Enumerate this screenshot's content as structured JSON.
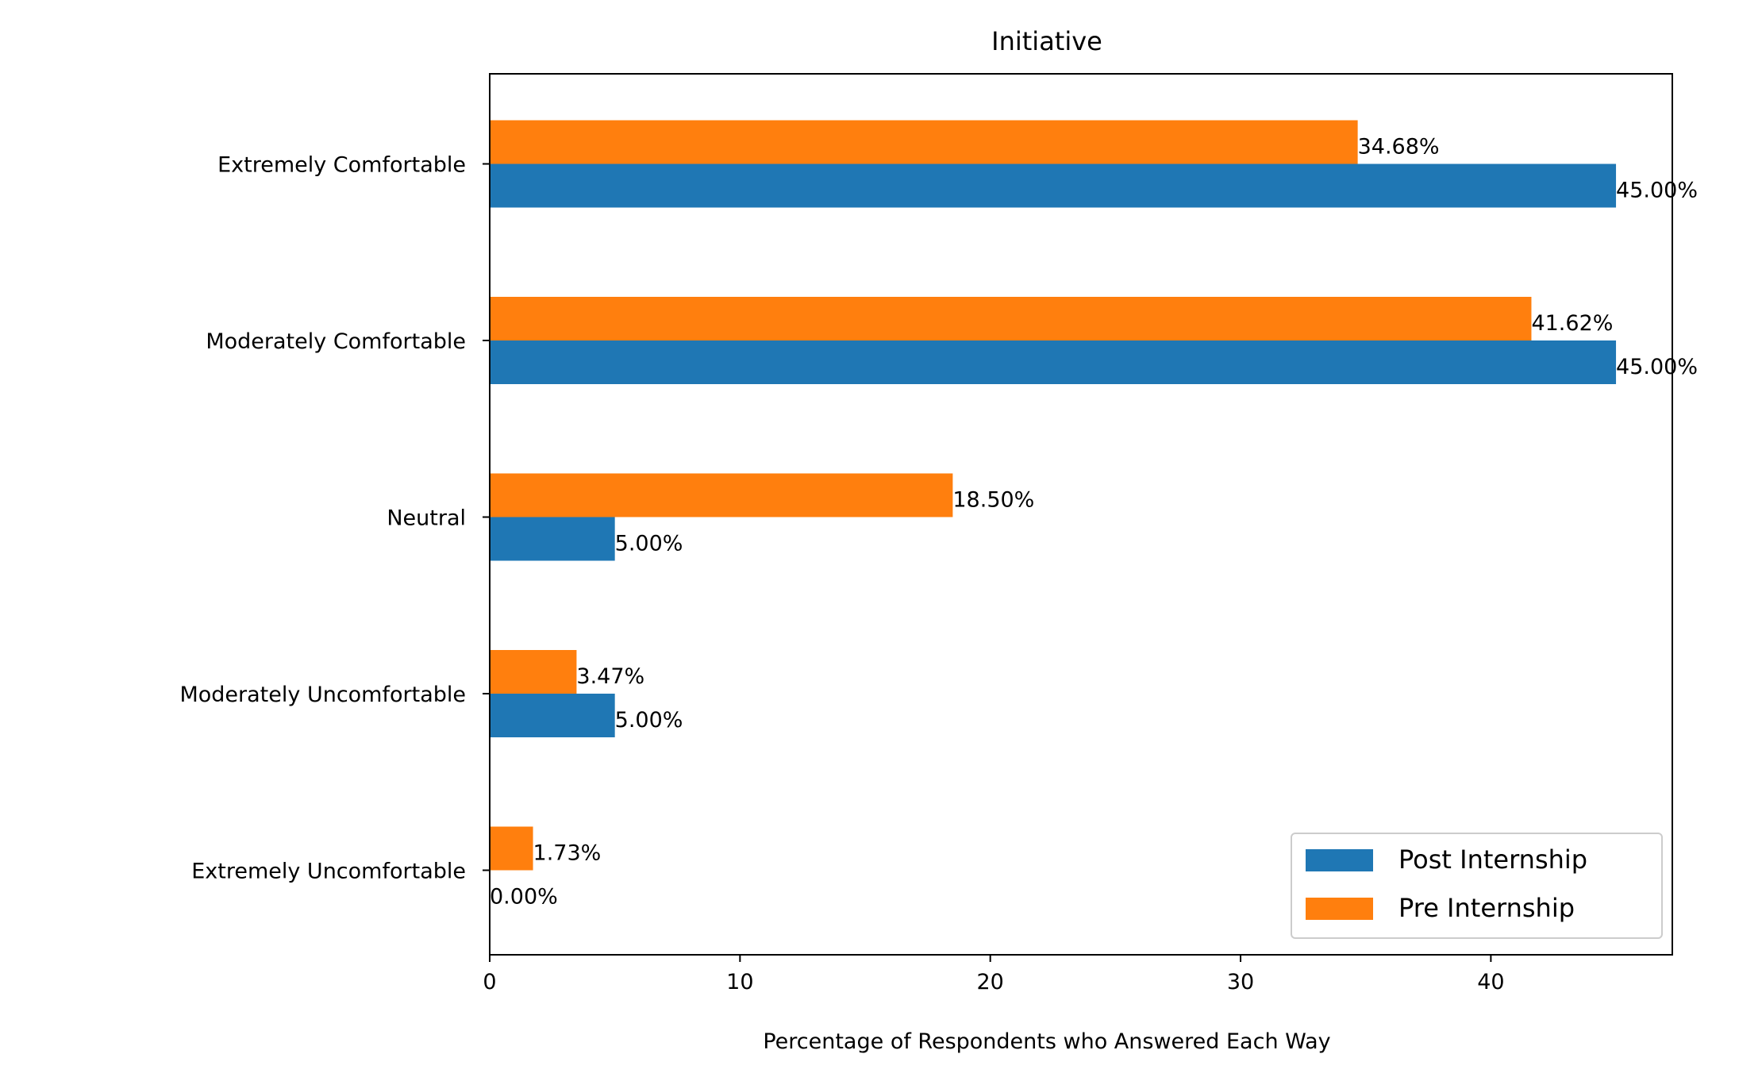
{
  "chart_data": {
    "type": "bar",
    "orientation": "horizontal",
    "title": "Initiative",
    "xlabel": "Percentage of Respondents who Answered Each Way",
    "ylabel": "",
    "xlim": [
      0,
      47.25
    ],
    "xticks": [
      0,
      10,
      20,
      30,
      40
    ],
    "categories": [
      "Extremely Comfortable",
      "Moderately Comfortable",
      "Neutral",
      "Moderately Uncomfortable",
      "Extremely Uncomfortable"
    ],
    "series": [
      {
        "name": "Post Internship",
        "color": "#1f77b4",
        "values": [
          45.0,
          45.0,
          5.0,
          5.0,
          0.0
        ],
        "labels": [
          "45.00%",
          "45.00%",
          "5.00%",
          "5.00%",
          "0.00%"
        ]
      },
      {
        "name": "Pre Internship",
        "color": "#ff7f0e",
        "values": [
          34.68,
          41.62,
          18.5,
          3.47,
          1.73
        ],
        "labels": [
          "34.68%",
          "41.62%",
          "18.50%",
          "3.47%",
          "1.73%"
        ]
      }
    ],
    "legend_position": "lower right",
    "grid": false
  }
}
